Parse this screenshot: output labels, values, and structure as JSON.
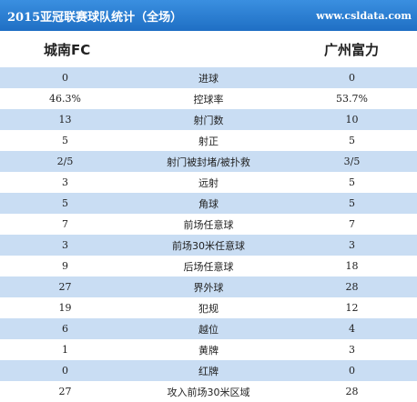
{
  "header": {
    "title": "2015亚冠联赛球队统计（全场）",
    "site": "www.csldata.com"
  },
  "teams": {
    "home": "城南FC",
    "away": "广州富力"
  },
  "stats": [
    {
      "home": "0",
      "label": "进球",
      "away": "0"
    },
    {
      "home": "46.3%",
      "label": "控球率",
      "away": "53.7%"
    },
    {
      "home": "13",
      "label": "射门数",
      "away": "10"
    },
    {
      "home": "5",
      "label": "射正",
      "away": "5"
    },
    {
      "home": "2/5",
      "label": "射门被封堵/被扑救",
      "away": "3/5"
    },
    {
      "home": "3",
      "label": "远射",
      "away": "5"
    },
    {
      "home": "5",
      "label": "角球",
      "away": "5"
    },
    {
      "home": "7",
      "label": "前场任意球",
      "away": "7"
    },
    {
      "home": "3",
      "label": "前场30米任意球",
      "away": "3"
    },
    {
      "home": "9",
      "label": "后场任意球",
      "away": "18"
    },
    {
      "home": "27",
      "label": "界外球",
      "away": "28"
    },
    {
      "home": "19",
      "label": "犯规",
      "away": "12"
    },
    {
      "home": "6",
      "label": "越位",
      "away": "4"
    },
    {
      "home": "1",
      "label": "黄牌",
      "away": "3"
    },
    {
      "home": "0",
      "label": "红牌",
      "away": "0"
    },
    {
      "home": "27",
      "label": "攻入前场30米区域",
      "away": "28"
    }
  ],
  "colors": {
    "header_top": "#3a8fe0",
    "header_bottom": "#1f6fc4",
    "stripe": "#c9ddf3"
  }
}
